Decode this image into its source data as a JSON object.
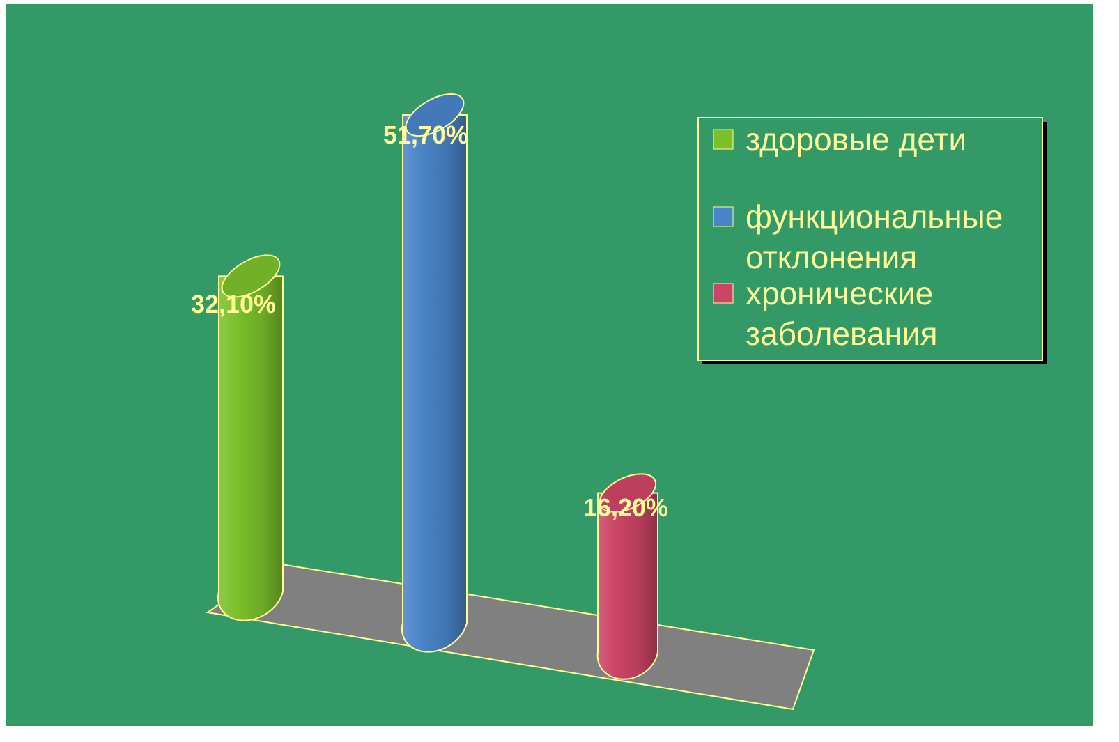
{
  "colors": {
    "background": "#339966",
    "floor": "#808080",
    "outline": "#ffff99",
    "label_text": "#ffff99",
    "legend_shadow": "#000000"
  },
  "chart_data": {
    "type": "bar",
    "style": "3d-cylinder",
    "categories": [
      "здоровые дети",
      "функциональные отклонения",
      "хронические заболевания"
    ],
    "values": [
      32.1,
      51.7,
      16.2
    ],
    "value_labels": [
      "32,10%",
      "51,70%",
      "16,20%"
    ],
    "colors": [
      "#7bbf2a",
      "#4a84c8",
      "#cc4466"
    ],
    "legend": {
      "position": "top-right",
      "entries": [
        {
          "lines": [
            "здоровые дети"
          ],
          "color": "#7bbf2a"
        },
        {
          "lines": [
            "функциональные",
            "отклонения"
          ],
          "color": "#4a84c8"
        },
        {
          "lines": [
            "хронические",
            "заболевания"
          ],
          "color": "#cc4466"
        }
      ]
    },
    "title": "",
    "xlabel": "",
    "ylabel": "",
    "grid": false
  }
}
